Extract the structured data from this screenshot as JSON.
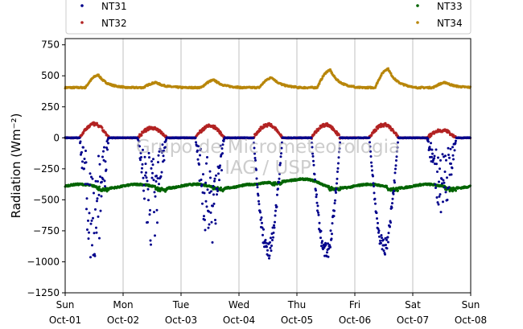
{
  "watermark": [
    "Grupo de Micrometeorologia",
    "IAG / USP"
  ],
  "chart_data": {
    "type": "scatter",
    "ylabel": "Radiation (Wm⁻²)",
    "xlabel": "",
    "ylim": [
      -1250,
      800
    ],
    "yticks": [
      -1250,
      -1000,
      -750,
      -500,
      -250,
      0,
      250,
      500,
      750
    ],
    "ytick_labels": [
      "−1250",
      "−1000",
      "−750",
      "−500",
      "−250",
      "0",
      "250",
      "500",
      "750"
    ],
    "x_range_days": [
      "Oct-01",
      "Oct-08"
    ],
    "xticks": [
      {
        "day": "Sun",
        "date": "Oct-01"
      },
      {
        "day": "Mon",
        "date": "Oct-02"
      },
      {
        "day": "Tue",
        "date": "Oct-03"
      },
      {
        "day": "Wed",
        "date": "Oct-04"
      },
      {
        "day": "Thu",
        "date": "Oct-05"
      },
      {
        "day": "Fri",
        "date": "Oct-06"
      },
      {
        "day": "Sat",
        "date": "Oct-07"
      },
      {
        "day": "Sun",
        "date": "Oct-08"
      }
    ],
    "grid": "vertical",
    "legend_position": "top",
    "series": [
      {
        "name": "NT31",
        "color": "#00008b",
        "description_values": {
          "night": 0,
          "daily_min": [
            -1050,
            -870,
            -880,
            -980,
            -1000,
            -950,
            -620
          ]
        }
      },
      {
        "name": "NT32",
        "color": "#b22222",
        "description_values": {
          "night": 0,
          "daily_max": [
            110,
            80,
            95,
            105,
            105,
            105,
            60
          ]
        }
      },
      {
        "name": "NT33",
        "color": "#006400",
        "description_values": {
          "baseline": -390,
          "range": [
            -430,
            -310
          ]
        }
      },
      {
        "name": "NT34",
        "color": "#b8860b",
        "description_values": {
          "baseline": 405,
          "daily_max": [
            510,
            450,
            470,
            490,
            550,
            560,
            450
          ]
        }
      }
    ]
  }
}
